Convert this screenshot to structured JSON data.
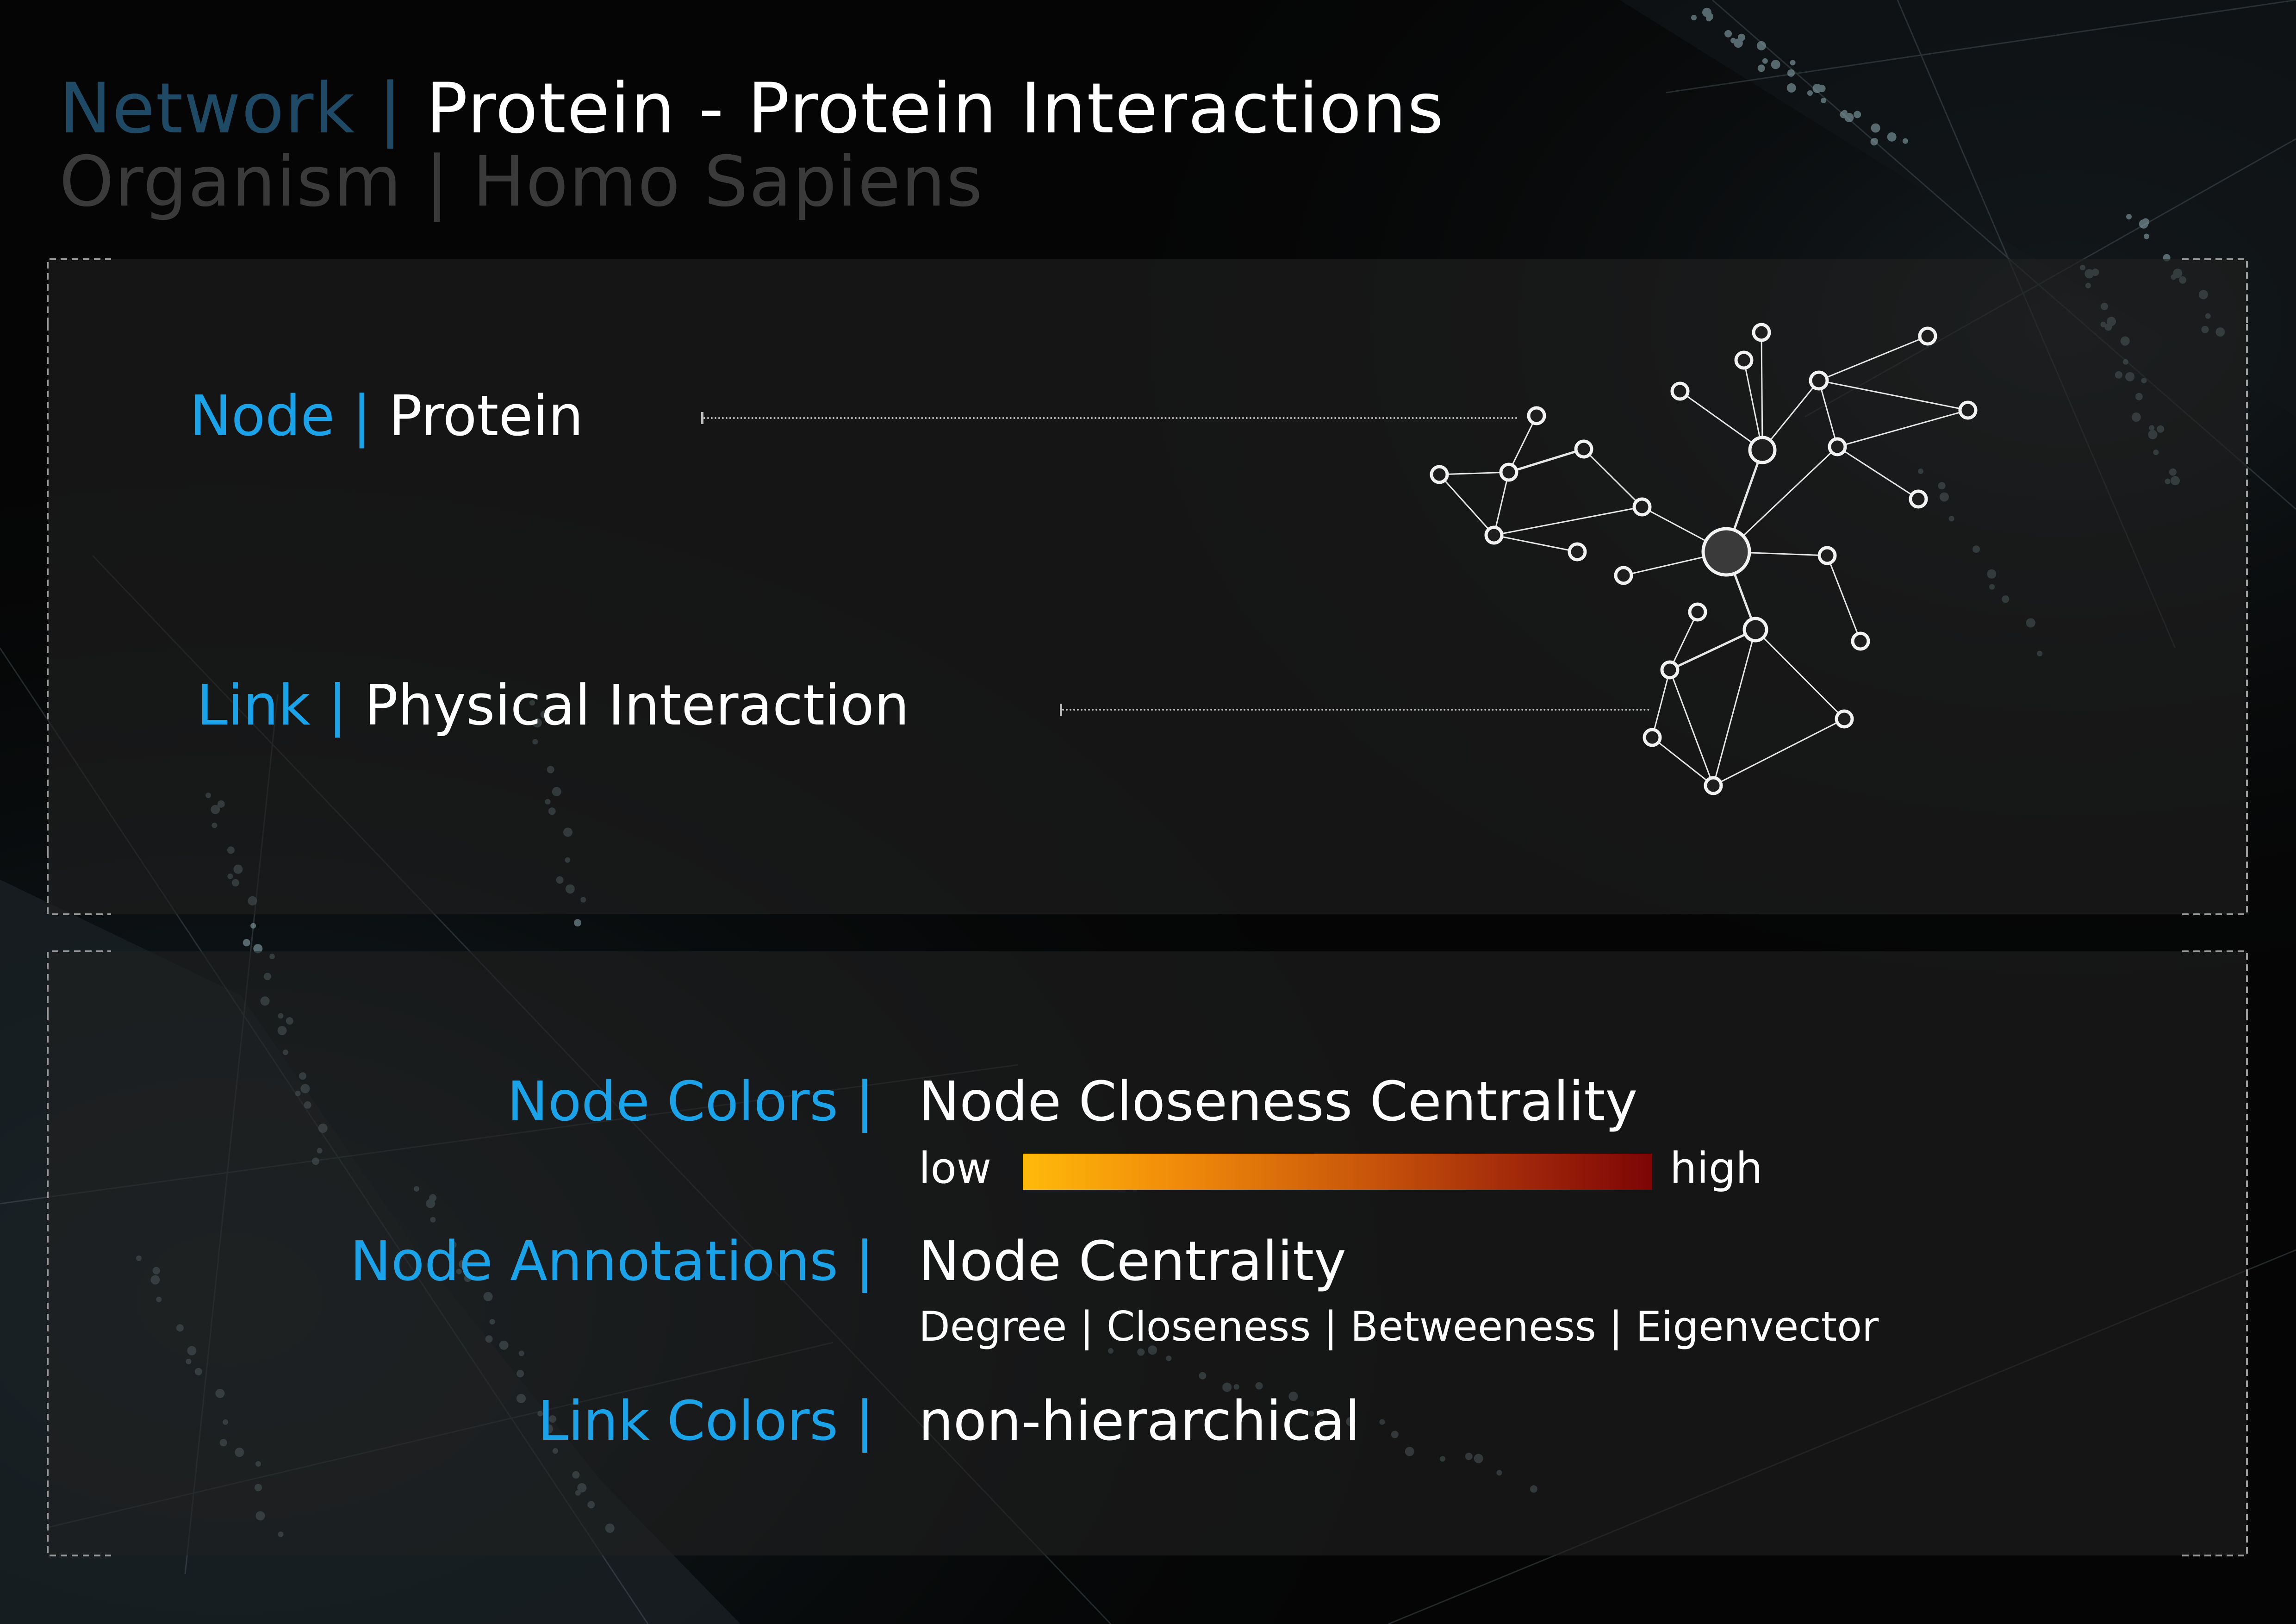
{
  "header": {
    "network_key": "Network |",
    "network_value": "Protein - Protein Interactions",
    "organism_key": "Organism |",
    "organism_value": "Homo Sapiens"
  },
  "legend_top": {
    "node_key": "Node |",
    "node_value": "Protein",
    "link_key": "Link |",
    "link_value": "Physical Interaction"
  },
  "legend_bottom": {
    "node_colors_key": "Node Colors |",
    "node_colors_value": "Node Closeness Centrality",
    "scale_low": "low",
    "scale_high": "high",
    "node_annotations_key": "Node Annotations |",
    "node_annotations_value": "Node Centrality",
    "node_annotations_sub": "Degree | Closeness | Betweeness | Eigenvector",
    "link_colors_key": "Link Colors |",
    "link_colors_value": "non-hierarchical"
  },
  "colors": {
    "accent_blue": "#1aa3e8",
    "title_blue_dim": "#1f4a66",
    "subtitle_gray": "#3a3a3a",
    "scale_low": "#ffba0a",
    "scale_high": "#7d0505"
  }
}
